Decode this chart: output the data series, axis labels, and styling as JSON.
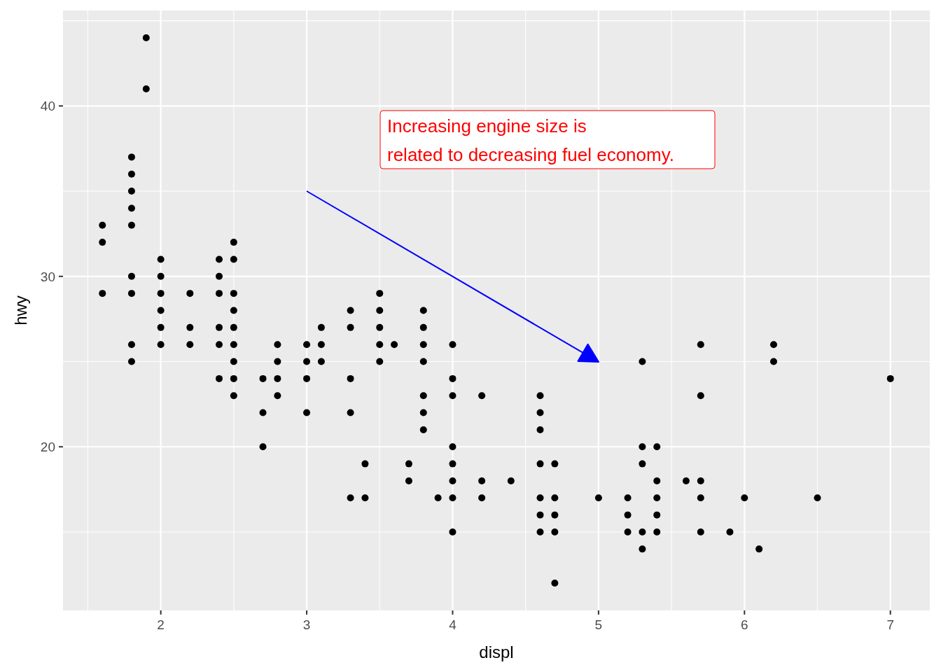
{
  "chart_data": {
    "type": "scatter",
    "xlabel": "displ",
    "ylabel": "hwy",
    "xlim": [
      1.33,
      7.27
    ],
    "ylim": [
      10.4,
      45.6
    ],
    "xticks": [
      2,
      3,
      4,
      5,
      6,
      7
    ],
    "yticks": [
      20,
      30,
      40
    ],
    "grid": true,
    "marker": "circle",
    "annotations": [
      "Increasing engine size is\nrelated to decreasing fuel economy."
    ],
    "series": [
      {
        "color": "#000000",
        "x": [
          1.6,
          1.6,
          1.6,
          1.8,
          1.8,
          1.8,
          1.8,
          1.8,
          1.8,
          1.8,
          1.8,
          1.8,
          1.9,
          1.9,
          2,
          2,
          2,
          2,
          2,
          2,
          2.2,
          2.2,
          2.2,
          2.4,
          2.4,
          2.4,
          2.4,
          2.4,
          2.4,
          2.5,
          2.5,
          2.5,
          2.5,
          2.5,
          2.5,
          2.5,
          2.5,
          2.5,
          2.7,
          2.7,
          2.7,
          2.8,
          2.8,
          2.8,
          2.8,
          3,
          3,
          3,
          3,
          3.1,
          3.1,
          3.1,
          3.3,
          3.3,
          3.3,
          3.3,
          3.3,
          3.4,
          3.4,
          3.5,
          3.5,
          3.5,
          3.5,
          3.5,
          3.6,
          3.7,
          3.7,
          3.8,
          3.8,
          3.8,
          3.8,
          3.8,
          3.8,
          3.8,
          3.9,
          4,
          4,
          4,
          4,
          4,
          4,
          4,
          4,
          4.2,
          4.2,
          4.2,
          4.4,
          4.6,
          4.6,
          4.6,
          4.6,
          4.6,
          4.6,
          4.6,
          4.7,
          4.7,
          4.7,
          4.7,
          4.7,
          5,
          5.2,
          5.2,
          5.2,
          5.3,
          5.3,
          5.3,
          5.3,
          5.3,
          5.4,
          5.4,
          5.4,
          5.4,
          5.4,
          5.6,
          5.7,
          5.7,
          5.7,
          5.7,
          5.7,
          5.9,
          6,
          6.1,
          6.2,
          6.2,
          6.5,
          7
        ],
        "values": [
          33,
          32,
          29,
          37,
          36,
          35,
          34,
          33,
          30,
          29,
          26,
          25,
          44,
          41,
          31,
          30,
          29,
          28,
          27,
          26,
          29,
          27,
          26,
          31,
          30,
          29,
          27,
          26,
          24,
          32,
          31,
          29,
          28,
          27,
          26,
          25,
          24,
          23,
          24,
          22,
          20,
          26,
          25,
          24,
          23,
          26,
          25,
          24,
          22,
          27,
          26,
          25,
          28,
          27,
          24,
          22,
          17,
          19,
          17,
          29,
          28,
          27,
          26,
          25,
          26,
          19,
          18,
          28,
          27,
          26,
          25,
          23,
          22,
          21,
          17,
          26,
          24,
          23,
          20,
          19,
          18,
          17,
          15,
          23,
          18,
          17,
          18,
          23,
          22,
          21,
          19,
          17,
          16,
          15,
          19,
          17,
          16,
          15,
          12,
          17,
          17,
          16,
          15,
          25,
          20,
          19,
          15,
          14,
          20,
          18,
          17,
          16,
          15,
          18,
          26,
          23,
          18,
          17,
          15,
          15,
          17,
          14,
          26,
          25,
          17,
          24
        ]
      }
    ]
  }
}
